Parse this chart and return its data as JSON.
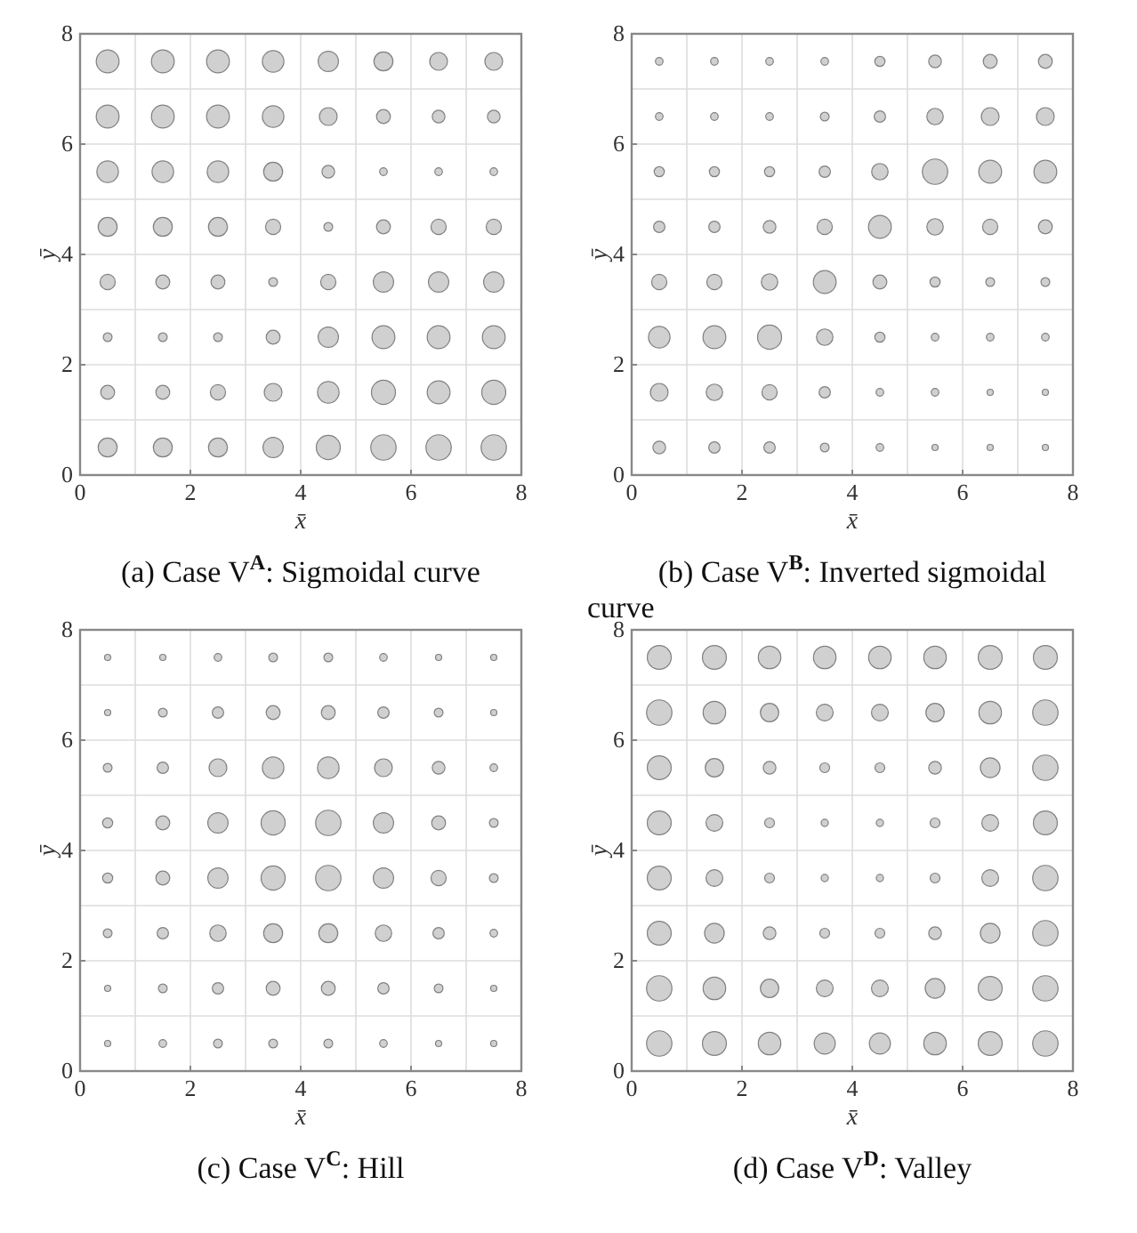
{
  "chart_data": [
    {
      "type": "bubble",
      "title": "(a) Case V$^{A}$: Sigmoidal curve",
      "xlabel": "x̄",
      "ylabel": "ȳ",
      "xlim": [
        0,
        8
      ],
      "ylim": [
        0,
        8
      ],
      "xticks": [
        0,
        2,
        4,
        6,
        8
      ],
      "yticks": [
        0,
        2,
        4,
        6,
        8
      ],
      "grid": true,
      "color": "#d0d0d0",
      "x": [
        0.5,
        1.5,
        2.5,
        3.5,
        4.5,
        5.5,
        6.5,
        7.5,
        0.5,
        1.5,
        2.5,
        3.5,
        4.5,
        5.5,
        6.5,
        7.5,
        0.5,
        1.5,
        2.5,
        3.5,
        4.5,
        5.5,
        6.5,
        7.5,
        0.5,
        1.5,
        2.5,
        3.5,
        4.5,
        5.5,
        6.5,
        7.5,
        0.5,
        1.5,
        2.5,
        3.5,
        4.5,
        5.5,
        6.5,
        7.5,
        0.5,
        1.5,
        2.5,
        3.5,
        4.5,
        5.5,
        6.5,
        7.5,
        0.5,
        1.5,
        2.5,
        3.5,
        4.5,
        5.5,
        6.5,
        7.5,
        0.5,
        1.5,
        2.5,
        3.5,
        4.5,
        5.5,
        6.5,
        7.5
      ],
      "values": [
        7.5,
        7.5,
        7.5,
        7.5,
        7.5,
        7.5,
        7.5,
        7.5,
        6.5,
        6.5,
        6.5,
        6.5,
        6.5,
        6.5,
        6.5,
        6.5,
        5.5,
        5.5,
        5.5,
        5.5,
        5.5,
        5.5,
        5.5,
        5.5,
        4.5,
        4.5,
        4.5,
        4.5,
        4.5,
        4.5,
        4.5,
        4.5,
        3.5,
        3.5,
        3.5,
        3.5,
        3.5,
        3.5,
        3.5,
        3.5,
        2.5,
        2.5,
        2.5,
        2.5,
        2.5,
        2.5,
        2.5,
        2.5,
        1.5,
        1.5,
        1.5,
        1.5,
        1.5,
        1.5,
        1.5,
        1.5,
        0.5,
        0.5,
        0.5,
        0.5,
        0.5,
        0.5,
        0.5,
        0.5
      ],
      "sizes": [
        0.81,
        0.81,
        0.81,
        0.72,
        0.64,
        0.56,
        0.49,
        0.49,
        0.81,
        0.81,
        0.81,
        0.72,
        0.49,
        0.3,
        0.25,
        0.25,
        0.72,
        0.72,
        0.72,
        0.56,
        0.25,
        0.09,
        0.09,
        0.09,
        0.56,
        0.56,
        0.56,
        0.36,
        0.12,
        0.3,
        0.36,
        0.36,
        0.36,
        0.3,
        0.3,
        0.12,
        0.36,
        0.64,
        0.64,
        0.64,
        0.12,
        0.12,
        0.12,
        0.3,
        0.64,
        0.81,
        0.81,
        0.81,
        0.3,
        0.3,
        0.36,
        0.49,
        0.72,
        0.9,
        0.81,
        0.9,
        0.56,
        0.56,
        0.56,
        0.64,
        0.9,
        1,
        1,
        1
      ]
    },
    {
      "type": "bubble",
      "title": "(b) Case V$^{B}$: Inverted sigmoidal curve",
      "xlabel": "x̄",
      "ylabel": "ȳ",
      "xlim": [
        0,
        8
      ],
      "ylim": [
        0,
        8
      ],
      "xticks": [
        0,
        2,
        4,
        6,
        8
      ],
      "yticks": [
        0,
        2,
        4,
        6,
        8
      ],
      "grid": true,
      "color": "#d0d0d0",
      "x": [
        0.5,
        1.5,
        2.5,
        3.5,
        4.5,
        5.5,
        6.5,
        7.5,
        0.5,
        1.5,
        2.5,
        3.5,
        4.5,
        5.5,
        6.5,
        7.5,
        0.5,
        1.5,
        2.5,
        3.5,
        4.5,
        5.5,
        6.5,
        7.5,
        0.5,
        1.5,
        2.5,
        3.5,
        4.5,
        5.5,
        6.5,
        7.5,
        0.5,
        1.5,
        2.5,
        3.5,
        4.5,
        5.5,
        6.5,
        7.5,
        0.5,
        1.5,
        2.5,
        3.5,
        4.5,
        5.5,
        6.5,
        7.5,
        0.5,
        1.5,
        2.5,
        3.5,
        4.5,
        5.5,
        6.5,
        7.5,
        0.5,
        1.5,
        2.5,
        3.5,
        4.5,
        5.5,
        6.5,
        7.5
      ],
      "values": [
        7.5,
        7.5,
        7.5,
        7.5,
        7.5,
        7.5,
        7.5,
        7.5,
        6.5,
        6.5,
        6.5,
        6.5,
        6.5,
        6.5,
        6.5,
        6.5,
        5.5,
        5.5,
        5.5,
        5.5,
        5.5,
        5.5,
        5.5,
        5.5,
        4.5,
        4.5,
        4.5,
        4.5,
        4.5,
        4.5,
        4.5,
        4.5,
        3.5,
        3.5,
        3.5,
        3.5,
        3.5,
        3.5,
        3.5,
        3.5,
        2.5,
        2.5,
        2.5,
        2.5,
        2.5,
        2.5,
        2.5,
        2.5,
        1.5,
        1.5,
        1.5,
        1.5,
        1.5,
        1.5,
        1.5,
        1.5,
        0.5,
        0.5,
        0.5,
        0.5,
        0.5,
        0.5,
        0.5,
        0.5
      ],
      "sizes": [
        0.09,
        0.09,
        0.09,
        0.09,
        0.16,
        0.25,
        0.3,
        0.3,
        0.09,
        0.09,
        0.09,
        0.12,
        0.2,
        0.42,
        0.49,
        0.49,
        0.16,
        0.16,
        0.16,
        0.2,
        0.42,
        1,
        0.81,
        0.81,
        0.2,
        0.2,
        0.25,
        0.36,
        0.81,
        0.42,
        0.36,
        0.3,
        0.36,
        0.36,
        0.42,
        0.81,
        0.3,
        0.16,
        0.12,
        0.12,
        0.72,
        0.81,
        0.9,
        0.42,
        0.16,
        0.09,
        0.09,
        0.09,
        0.49,
        0.42,
        0.36,
        0.2,
        0.09,
        0.09,
        0.06,
        0.06,
        0.25,
        0.2,
        0.2,
        0.12,
        0.09,
        0.06,
        0.06,
        0.06
      ]
    },
    {
      "type": "bubble",
      "title": "(c) Case V$^{C}$: Hill",
      "xlabel": "x̄",
      "ylabel": "ȳ",
      "xlim": [
        0,
        8
      ],
      "ylim": [
        0,
        8
      ],
      "xticks": [
        0,
        2,
        4,
        6,
        8
      ],
      "yticks": [
        0,
        2,
        4,
        6,
        8
      ],
      "grid": true,
      "color": "#d0d0d0",
      "x": [
        0.5,
        1.5,
        2.5,
        3.5,
        4.5,
        5.5,
        6.5,
        7.5,
        0.5,
        1.5,
        2.5,
        3.5,
        4.5,
        5.5,
        6.5,
        7.5,
        0.5,
        1.5,
        2.5,
        3.5,
        4.5,
        5.5,
        6.5,
        7.5,
        0.5,
        1.5,
        2.5,
        3.5,
        4.5,
        5.5,
        6.5,
        7.5,
        0.5,
        1.5,
        2.5,
        3.5,
        4.5,
        5.5,
        6.5,
        7.5,
        0.5,
        1.5,
        2.5,
        3.5,
        4.5,
        5.5,
        6.5,
        7.5,
        0.5,
        1.5,
        2.5,
        3.5,
        4.5,
        5.5,
        6.5,
        7.5,
        0.5,
        1.5,
        2.5,
        3.5,
        4.5,
        5.5,
        6.5,
        7.5
      ],
      "values": [
        7.5,
        7.5,
        7.5,
        7.5,
        7.5,
        7.5,
        7.5,
        7.5,
        6.5,
        6.5,
        6.5,
        6.5,
        6.5,
        6.5,
        6.5,
        6.5,
        5.5,
        5.5,
        5.5,
        5.5,
        5.5,
        5.5,
        5.5,
        5.5,
        4.5,
        4.5,
        4.5,
        4.5,
        4.5,
        4.5,
        4.5,
        4.5,
        3.5,
        3.5,
        3.5,
        3.5,
        3.5,
        3.5,
        3.5,
        3.5,
        2.5,
        2.5,
        2.5,
        2.5,
        2.5,
        2.5,
        2.5,
        2.5,
        1.5,
        1.5,
        1.5,
        1.5,
        1.5,
        1.5,
        1.5,
        1.5,
        0.5,
        0.5,
        0.5,
        0.5,
        0.5,
        0.5,
        0.5,
        0.5
      ],
      "sizes": [
        0.06,
        0.06,
        0.09,
        0.12,
        0.12,
        0.09,
        0.06,
        0.06,
        0.06,
        0.12,
        0.2,
        0.3,
        0.3,
        0.2,
        0.12,
        0.06,
        0.12,
        0.2,
        0.49,
        0.72,
        0.72,
        0.49,
        0.25,
        0.09,
        0.16,
        0.3,
        0.64,
        0.9,
        1,
        0.64,
        0.3,
        0.12,
        0.16,
        0.3,
        0.64,
        0.9,
        1,
        0.64,
        0.36,
        0.12,
        0.12,
        0.2,
        0.42,
        0.56,
        0.56,
        0.42,
        0.2,
        0.09,
        0.06,
        0.12,
        0.2,
        0.3,
        0.3,
        0.2,
        0.12,
        0.06,
        0.06,
        0.09,
        0.12,
        0.12,
        0.12,
        0.09,
        0.06,
        0.06
      ]
    },
    {
      "type": "bubble",
      "title": "(d) Case V$^{D}$: Valley",
      "xlabel": "x̄",
      "ylabel": "ȳ",
      "xlim": [
        0,
        8
      ],
      "ylim": [
        0,
        8
      ],
      "xticks": [
        0,
        2,
        4,
        6,
        8
      ],
      "yticks": [
        0,
        2,
        4,
        6,
        8
      ],
      "grid": true,
      "color": "#d0d0d0",
      "x": [
        0.5,
        1.5,
        2.5,
        3.5,
        4.5,
        5.5,
        6.5,
        7.5,
        0.5,
        1.5,
        2.5,
        3.5,
        4.5,
        5.5,
        6.5,
        7.5,
        0.5,
        1.5,
        2.5,
        3.5,
        4.5,
        5.5,
        6.5,
        7.5,
        0.5,
        1.5,
        2.5,
        3.5,
        4.5,
        5.5,
        6.5,
        7.5,
        0.5,
        1.5,
        2.5,
        3.5,
        4.5,
        5.5,
        6.5,
        7.5,
        0.5,
        1.5,
        2.5,
        3.5,
        4.5,
        5.5,
        6.5,
        7.5,
        0.5,
        1.5,
        2.5,
        3.5,
        4.5,
        5.5,
        6.5,
        7.5,
        0.5,
        1.5,
        2.5,
        3.5,
        4.5,
        5.5,
        6.5,
        7.5
      ],
      "values": [
        7.5,
        7.5,
        7.5,
        7.5,
        7.5,
        7.5,
        7.5,
        7.5,
        6.5,
        6.5,
        6.5,
        6.5,
        6.5,
        6.5,
        6.5,
        6.5,
        5.5,
        5.5,
        5.5,
        5.5,
        5.5,
        5.5,
        5.5,
        5.5,
        4.5,
        4.5,
        4.5,
        4.5,
        4.5,
        4.5,
        4.5,
        4.5,
        3.5,
        3.5,
        3.5,
        3.5,
        3.5,
        3.5,
        3.5,
        3.5,
        2.5,
        2.5,
        2.5,
        2.5,
        2.5,
        2.5,
        2.5,
        2.5,
        1.5,
        1.5,
        1.5,
        1.5,
        1.5,
        1.5,
        1.5,
        1.5,
        0.5,
        0.5,
        0.5,
        0.5,
        0.5,
        0.5,
        0.5,
        0.5
      ],
      "sizes": [
        0.89,
        0.89,
        0.79,
        0.79,
        0.79,
        0.79,
        0.89,
        0.89,
        1,
        0.79,
        0.52,
        0.44,
        0.44,
        0.52,
        0.79,
        1,
        0.89,
        0.52,
        0.25,
        0.15,
        0.15,
        0.25,
        0.6,
        1,
        0.89,
        0.44,
        0.15,
        0.08,
        0.08,
        0.15,
        0.44,
        0.89,
        0.89,
        0.44,
        0.15,
        0.08,
        0.08,
        0.15,
        0.44,
        1,
        0.89,
        0.6,
        0.25,
        0.15,
        0.15,
        0.25,
        0.6,
        1,
        1,
        0.79,
        0.52,
        0.44,
        0.44,
        0.6,
        0.89,
        1,
        1,
        0.89,
        0.79,
        0.69,
        0.69,
        0.79,
        0.89,
        1
      ]
    }
  ]
}
